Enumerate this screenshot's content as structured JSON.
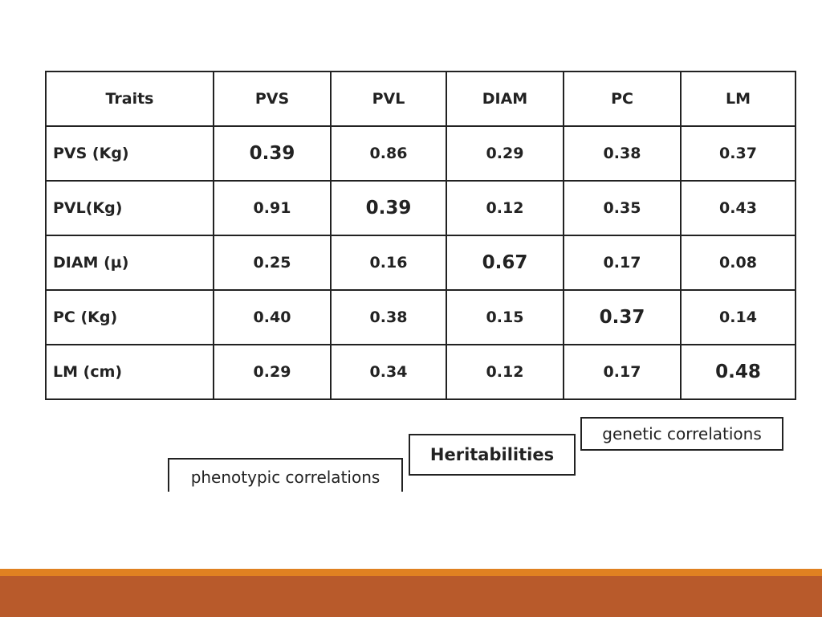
{
  "table": {
    "header": [
      "Traits",
      "PVS",
      "PVL",
      "DIAM",
      "PC",
      "LM"
    ],
    "rows": [
      [
        "PVS (Kg)",
        "0.39",
        "0.86",
        "0.29",
        "0.38",
        "0.37"
      ],
      [
        "PVL(Kg)",
        "0.91",
        "0.39",
        "0.12",
        "0.35",
        "0.43"
      ],
      [
        "DIAM (µ)",
        "0.25",
        "0.16",
        "0.67",
        "0.17",
        "0.08"
      ],
      [
        "PC (Kg)",
        "0.40",
        "0.38",
        "0.15",
        "0.37",
        "0.14"
      ],
      [
        "LM (cm)",
        "0.29",
        "0.34",
        "0.12",
        "0.17",
        "0.48"
      ]
    ]
  },
  "legend": {
    "genetic": "genetic correlations",
    "heritabilities": "Heritabilities",
    "phenotypic": "phenotypic correlations"
  }
}
